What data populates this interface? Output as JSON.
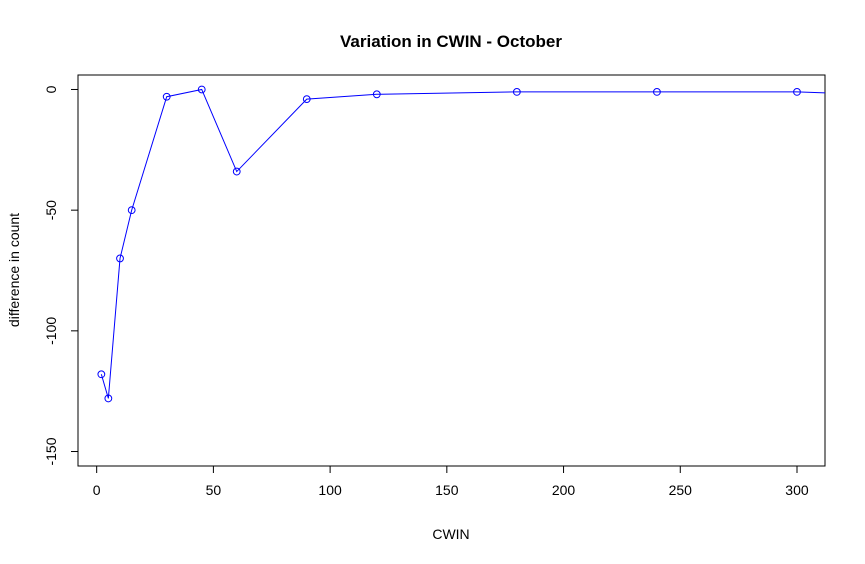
{
  "chart_data": {
    "type": "line",
    "title": "Variation in CWIN - October",
    "xlabel": "CWIN",
    "ylabel": "difference in count",
    "xlim": [
      -8,
      312
    ],
    "ylim": [
      -156,
      6
    ],
    "xticks": [
      0,
      50,
      100,
      150,
      200,
      250,
      300
    ],
    "yticks": [
      0,
      -50,
      -100,
      -150
    ],
    "grid": false,
    "legend": "none",
    "series": [
      {
        "color": "#0000ff",
        "marker": "open-circle",
        "x": [
          2,
          5,
          10,
          15,
          30,
          45,
          60,
          90,
          120,
          180,
          240,
          300,
          360
        ],
        "y": [
          -118,
          -128,
          -70,
          -50,
          -3,
          0,
          -34,
          -4,
          -2,
          -1,
          -1,
          -1,
          -3
        ]
      }
    ]
  }
}
